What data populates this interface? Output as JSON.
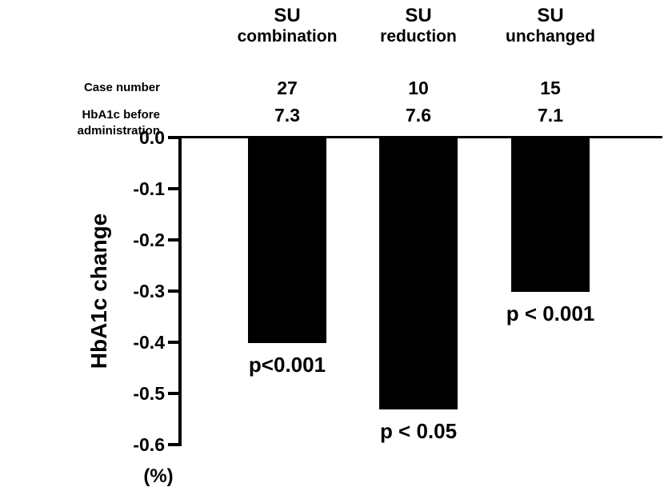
{
  "chart_data": {
    "type": "bar",
    "title": "",
    "ylabel": "HbA1c change",
    "y_unit_label": "(%)",
    "ylim": [
      -0.6,
      0.0
    ],
    "ytick_labels": [
      "0.0",
      "-0.1",
      "-0.2",
      "-0.3",
      "-0.4",
      "-0.5",
      "-0.6"
    ],
    "ytick_values": [
      0.0,
      -0.1,
      -0.2,
      -0.3,
      -0.4,
      -0.5,
      -0.6
    ],
    "grid": "off",
    "bar_color": "#000000",
    "background_color": "#ffffff",
    "categories": [
      "SU combination",
      "SU reduction",
      "SU unchanged"
    ],
    "values": [
      -0.4,
      -0.53,
      -0.3
    ],
    "row_labels": {
      "case_number": "Case number",
      "hba1c_before": "HbA1c before administration"
    },
    "groups": [
      {
        "label_line1": "SU",
        "label_line2": "combination",
        "case_number": "27",
        "hba1c_before": "7.3",
        "value": -0.4,
        "p_label": "p<0.001"
      },
      {
        "label_line1": "SU",
        "label_line2": "reduction",
        "case_number": "10",
        "hba1c_before": "7.6",
        "value": -0.53,
        "p_label": "p < 0.05"
      },
      {
        "label_line1": "SU",
        "label_line2": "unchanged",
        "case_number": "15",
        "hba1c_before": "7.1",
        "value": -0.3,
        "p_label": "p < 0.001"
      }
    ]
  }
}
